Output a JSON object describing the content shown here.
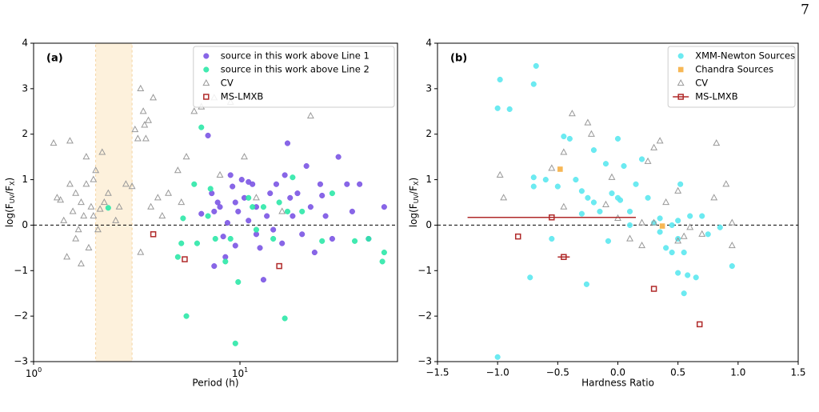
{
  "page_number": "7",
  "chart_data": [
    {
      "type": "scatter",
      "label": "(a)",
      "xlabel": "Period (h)",
      "ylabel": [
        {
          "text": "log("
        },
        {
          "text": "F"
        },
        {
          "text": "UV",
          "sub": true
        },
        {
          "text": "/"
        },
        {
          "text": "F"
        },
        {
          "text": "X",
          "sub": true
        },
        {
          "text": ")"
        }
      ],
      "xscale": "log",
      "xlim": [
        1,
        58
      ],
      "ylim": [
        -3,
        4
      ],
      "xticks": [
        {
          "value": 1,
          "label": "10",
          "exponent": "0"
        },
        {
          "value": 10,
          "label": "10",
          "exponent": "1"
        }
      ],
      "yticks": [
        {
          "value": -3,
          "label": "−3"
        },
        {
          "value": -2,
          "label": "−2"
        },
        {
          "value": -1,
          "label": "−1"
        },
        0,
        1,
        2,
        3,
        4
      ],
      "hline": 0,
      "shade": [
        2,
        3
      ],
      "shade_color": "#fdf1dc",
      "legend": "upper right",
      "series": [
        {
          "name": "source in this work above Line 1",
          "color": "#7b55e4",
          "marker": "circle",
          "x": [
            7.0,
            7.3,
            7.5,
            7.8,
            8.0,
            8.3,
            8.7,
            9.0,
            9.2,
            9.5,
            9.8,
            10.2,
            10.5,
            11.0,
            11.5,
            12.0,
            12.5,
            13.0,
            13.5,
            14.0,
            14.5,
            15.0,
            16.0,
            16.5,
            17.0,
            17.5,
            18.0,
            19.0,
            20.0,
            21.0,
            22.0,
            23.0,
            24.5,
            26.0,
            28.0,
            30.0,
            33.0,
            35.0,
            38.0,
            42.0,
            50.0,
            7.5,
            8.5,
            9.5,
            11.0,
            12.0,
            25.0,
            6.5
          ],
          "y": [
            1.97,
            0.7,
            0.3,
            0.5,
            0.4,
            -0.25,
            0.05,
            1.1,
            0.85,
            0.5,
            0.3,
            1.0,
            0.6,
            0.1,
            0.9,
            0.4,
            -0.5,
            -1.2,
            0.2,
            0.7,
            -0.1,
            0.9,
            -0.4,
            1.1,
            1.8,
            0.6,
            0.2,
            0.7,
            -0.2,
            1.3,
            0.4,
            -0.6,
            0.9,
            0.2,
            -0.3,
            1.5,
            0.9,
            0.3,
            0.9,
            -0.3,
            0.4,
            -0.9,
            -0.7,
            -0.45,
            0.95,
            -0.2,
            0.65,
            0.25
          ]
        },
        {
          "name": "source in this work above Line 2",
          "color": "#2ee8a8",
          "marker": "circle",
          "x": [
            2.3,
            5.3,
            5.5,
            5.0,
            6.0,
            6.5,
            7.0,
            7.2,
            7.6,
            8.5,
            9.0,
            9.5,
            9.8,
            11.0,
            11.5,
            12.0,
            13.0,
            14.5,
            15.5,
            16.5,
            17.0,
            18.0,
            20.0,
            25.0,
            28.0,
            36.0,
            42.0,
            50.0,
            49.0,
            6.2,
            5.2
          ],
          "y": [
            0.38,
            0.15,
            -2.0,
            -0.7,
            0.9,
            2.15,
            0.2,
            0.8,
            -0.3,
            -0.8,
            -0.3,
            -2.6,
            -1.25,
            0.6,
            0.4,
            -0.1,
            0.4,
            -0.3,
            0.5,
            -2.05,
            0.3,
            1.05,
            0.3,
            -0.35,
            0.7,
            -0.35,
            -0.3,
            -0.6,
            -0.8,
            -0.4,
            -0.4
          ]
        },
        {
          "name": "CV",
          "color": "#999999",
          "marker": "triangle",
          "x": [
            1.25,
            1.3,
            1.35,
            1.4,
            1.45,
            1.5,
            1.5,
            1.55,
            1.6,
            1.65,
            1.7,
            1.75,
            1.8,
            1.8,
            1.85,
            1.9,
            1.95,
            1.95,
            2.0,
            2.05,
            2.1,
            2.15,
            2.2,
            2.3,
            2.5,
            2.6,
            2.8,
            3.0,
            3.1,
            3.2,
            3.3,
            3.4,
            3.45,
            3.5,
            3.6,
            3.7,
            3.3,
            3.8,
            4.0,
            4.2,
            4.5,
            5.0,
            5.5,
            6.0,
            6.5,
            7.5,
            8.0,
            9.0,
            10.5,
            12.0,
            16.0,
            22.0,
            5.2,
            1.6,
            1.7
          ],
          "y": [
            1.8,
            0.6,
            0.55,
            0.1,
            -0.7,
            0.9,
            1.85,
            0.3,
            0.7,
            -0.1,
            0.5,
            0.2,
            1.5,
            0.9,
            -0.5,
            0.4,
            1.0,
            0.2,
            1.2,
            -0.1,
            0.35,
            1.6,
            0.5,
            0.7,
            0.1,
            0.4,
            0.9,
            0.85,
            2.1,
            1.9,
            3.0,
            2.5,
            2.2,
            1.9,
            2.3,
            0.4,
            -0.6,
            2.8,
            0.6,
            0.2,
            0.7,
            1.2,
            1.5,
            2.5,
            2.6,
            2.8,
            1.1,
            2.7,
            1.5,
            0.6,
            0.3,
            2.4,
            0.5,
            -0.3,
            -0.85
          ]
        },
        {
          "name": "MS-LMXB",
          "color": "#b02a2a",
          "marker": "square",
          "x": [
            3.8,
            5.4,
            15.5
          ],
          "y": [
            -0.2,
            -0.75,
            -0.9
          ]
        }
      ]
    },
    {
      "type": "scatter",
      "label": "(b)",
      "xlabel": "Hardness Ratio",
      "ylabel": [
        {
          "text": "log("
        },
        {
          "text": "F"
        },
        {
          "text": "UV",
          "sub": true
        },
        {
          "text": "/"
        },
        {
          "text": "F"
        },
        {
          "text": "X",
          "sub": true
        },
        {
          "text": ")"
        }
      ],
      "xscale": "linear",
      "xlim": [
        -1.5,
        1.5
      ],
      "ylim": [
        -3,
        4
      ],
      "xticks": [
        {
          "value": -1.5,
          "label": "−1.5"
        },
        {
          "value": -1.0,
          "label": "−1.0"
        },
        {
          "value": -0.5,
          "label": "−0.5"
        },
        {
          "value": 0,
          "label": "0.0"
        },
        0.5,
        {
          "value": 1,
          "label": "1.0"
        },
        1.5
      ],
      "yticks": [
        {
          "value": -3,
          "label": "−3"
        },
        {
          "value": -2,
          "label": "−2"
        },
        {
          "value": -1,
          "label": "−1"
        },
        0,
        1,
        2,
        3,
        4
      ],
      "hline": 0,
      "legend": "upper right",
      "series": [
        {
          "name": "XMM-Newton Sources",
          "color": "#5ce8f0",
          "marker": "circle",
          "x": [
            -0.98,
            -1.0,
            -0.9,
            -0.68,
            -0.7,
            -0.7,
            -0.7,
            -0.6,
            -0.5,
            -0.45,
            -0.4,
            -0.35,
            -0.3,
            -0.25,
            -0.2,
            -0.2,
            -0.15,
            -0.1,
            -0.05,
            0.0,
            0.0,
            0.05,
            0.1,
            0.15,
            0.2,
            0.25,
            0.3,
            0.35,
            0.4,
            0.45,
            0.5,
            0.5,
            0.52,
            0.55,
            0.58,
            0.6,
            0.65,
            0.7,
            0.75,
            0.85,
            0.95,
            0.55,
            0.5,
            0.02,
            -0.55,
            -0.73,
            -0.26,
            -1.0,
            -0.08,
            0.1,
            -0.3,
            0.45,
            0.35
          ],
          "y": [
            3.2,
            2.57,
            2.55,
            3.5,
            3.1,
            1.05,
            0.85,
            1.0,
            0.85,
            1.95,
            1.9,
            1.0,
            0.75,
            0.6,
            1.65,
            0.5,
            0.3,
            1.35,
            0.7,
            1.9,
            0.6,
            1.3,
            0.3,
            0.9,
            1.45,
            0.6,
            0.05,
            -0.15,
            -0.5,
            -0.6,
            0.1,
            -0.3,
            0.9,
            -0.6,
            -1.1,
            0.2,
            -1.15,
            0.2,
            -0.2,
            -0.05,
            -0.9,
            -1.5,
            -1.05,
            0.55,
            -0.3,
            -1.15,
            -1.3,
            -2.9,
            -0.35,
            0.0,
            0.25,
            0.0,
            0.15
          ]
        },
        {
          "name": "Chandra Sources",
          "color": "#f7b755",
          "marker": "filled-square",
          "x": [
            -0.48,
            0.37
          ],
          "y": [
            1.23,
            -0.02
          ]
        },
        {
          "name": "CV",
          "color": "#999999",
          "marker": "triangle",
          "x": [
            -0.98,
            -0.95,
            -0.55,
            -0.38,
            -0.45,
            -0.25,
            -0.22,
            -0.05,
            0.0,
            0.1,
            0.2,
            0.25,
            0.3,
            0.35,
            0.4,
            0.5,
            0.55,
            0.6,
            0.7,
            0.8,
            0.82,
            0.9,
            0.95,
            0.95,
            -0.1,
            0.3,
            0.2,
            -0.45,
            0.5
          ],
          "y": [
            1.1,
            0.6,
            1.25,
            2.45,
            1.6,
            2.25,
            2.0,
            1.05,
            0.15,
            -0.3,
            0.05,
            1.4,
            1.7,
            1.85,
            0.5,
            0.75,
            -0.25,
            -0.05,
            -0.2,
            0.6,
            1.8,
            0.9,
            -0.45,
            0.05,
            0.45,
            0.05,
            -0.45,
            0.4,
            -0.35
          ]
        },
        {
          "name": "MS-LMXB",
          "color": "#b02a2a",
          "marker": "square",
          "x": [
            -0.55,
            -0.83,
            -0.45,
            0.3,
            0.68
          ],
          "y": [
            0.17,
            -0.25,
            -0.7,
            -1.4,
            -2.18
          ],
          "xerr": [
            0.7,
            0,
            0.05,
            0,
            0
          ]
        }
      ]
    }
  ]
}
